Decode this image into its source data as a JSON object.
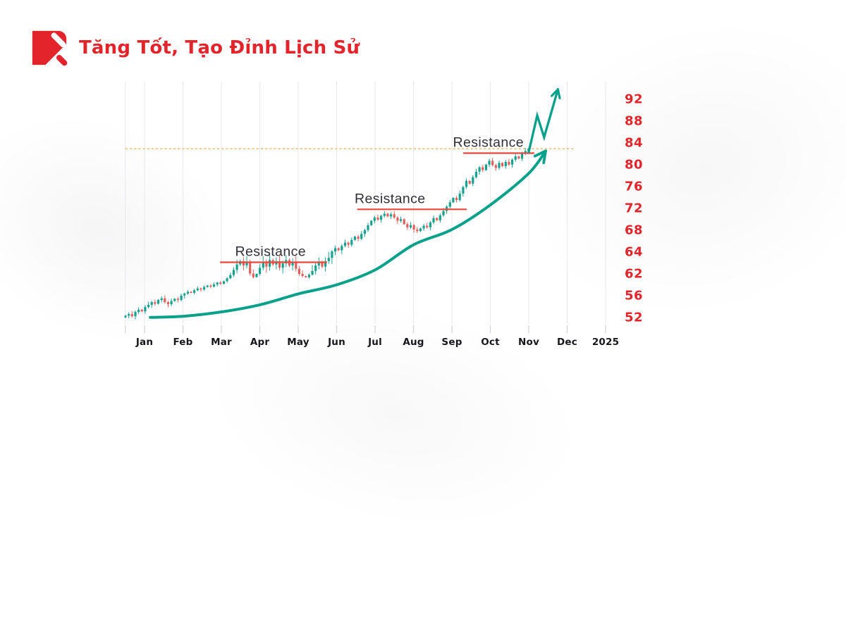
{
  "header": {
    "title": "Tăng Tốt, Tạo Đỉnh Lịch Sử",
    "logo_icon": "red-square-with-white-arrow-slashes"
  },
  "colors": {
    "accent": "#e3242b",
    "candle_up": "#16a28f",
    "candle_down": "#e2605c",
    "arrow": "#0aa18b",
    "resistance_line": "#e8473c",
    "dotted_line": "#ecb568",
    "grid_strong": "#96969c",
    "grid_light": "#e8e8ed",
    "tick": "#d2d2d8",
    "month_label": "#16161b",
    "resistance_label": "#30303a"
  },
  "chart_data": {
    "type": "candlestick",
    "title": "Tăng Tốt, Tạo Đỉnh Lịch Sử",
    "x_labels": [
      "Jan",
      "Feb",
      "Mar",
      "Apr",
      "May",
      "Jun",
      "Jul",
      "Aug",
      "Sep",
      "Oct",
      "Nov",
      "Dec",
      "2025"
    ],
    "y_ticks": [
      52,
      56,
      62,
      64,
      68,
      72,
      76,
      80,
      84,
      88,
      92
    ],
    "y_axis_side": "right",
    "grid": true,
    "ylim": [
      50,
      95
    ],
    "candles": {
      "start_month": -0.495,
      "step_month": 0.0853,
      "first_open": 51.9,
      "closes": [
        52.2,
        52.5,
        52.1,
        52.9,
        53.3,
        53.0,
        53.8,
        54.2,
        54.7,
        54.4,
        55.1,
        55.4,
        54.7,
        54.3,
        54.9,
        55.3,
        55.1,
        55.9,
        56.4,
        56.9,
        56.6,
        57.3,
        57.8,
        57.5,
        58.2,
        58.6,
        58.3,
        58.9,
        59.4,
        59.1,
        59.8,
        60.6,
        61.5,
        62.3,
        62.8,
        63.1,
        62.7,
        63.0,
        61.9,
        60.9,
        61.8,
        62.5,
        63.0,
        62.6,
        63.2,
        62.8,
        63.1,
        62.5,
        62.9,
        63.2,
        62.7,
        63.0,
        62.4,
        61.8,
        61.2,
        60.9,
        61.6,
        62.2,
        62.7,
        63.0,
        62.6,
        63.1,
        63.4,
        64.0,
        64.6,
        64.2,
        65.0,
        65.6,
        65.2,
        66.1,
        66.7,
        66.3,
        67.2,
        67.9,
        68.8,
        69.6,
        70.2,
        69.8,
        70.5,
        70.9,
        70.4,
        70.8,
        70.2,
        69.6,
        69.9,
        69.0,
        68.4,
        68.8,
        68.0,
        67.7,
        68.2,
        68.7,
        68.4,
        69.3,
        70.1,
        69.7,
        70.6,
        71.4,
        72.2,
        73.0,
        73.8,
        73.4,
        74.6,
        75.8,
        76.9,
        76.4,
        77.6,
        78.6,
        79.4,
        78.9,
        79.9,
        80.6,
        79.8,
        79.3,
        80.2,
        79.6,
        80.4,
        79.9,
        80.8,
        81.4,
        81.0,
        81.9,
        82.4,
        82.8
      ]
    },
    "resistances": [
      {
        "label": "Resistance",
        "level": 63.0,
        "from_month": 1.98,
        "to_month": 4.73,
        "label_month": 3.28
      },
      {
        "label": "Resistance",
        "level": 71.7,
        "from_month": 5.55,
        "to_month": 8.37,
        "label_month": 6.39
      },
      {
        "label": "Resistance",
        "level": 82.0,
        "from_month": 8.31,
        "to_month": 10.13,
        "label_month": 8.95
      }
    ],
    "dotted_level_line": {
      "level": 82.8,
      "from_month": -0.5,
      "to_month": 11.2
    },
    "trend_curve": {
      "points_month_price": [
        [
          0.15,
          51.9
        ],
        [
          1,
          52.1
        ],
        [
          2,
          52.9
        ],
        [
          3,
          54.2
        ],
        [
          4,
          56.3
        ],
        [
          5,
          58.8
        ],
        [
          6,
          62.3
        ],
        [
          7,
          65.2
        ],
        [
          8,
          68.0
        ],
        [
          9,
          72.5
        ],
        [
          10,
          78.3
        ],
        [
          10.44,
          82.4
        ]
      ]
    },
    "breakout_arrow": {
      "points_month_price": [
        [
          10.0,
          82.2
        ],
        [
          10.22,
          88.9
        ],
        [
          10.4,
          84.9
        ],
        [
          10.76,
          93.7
        ]
      ]
    }
  }
}
